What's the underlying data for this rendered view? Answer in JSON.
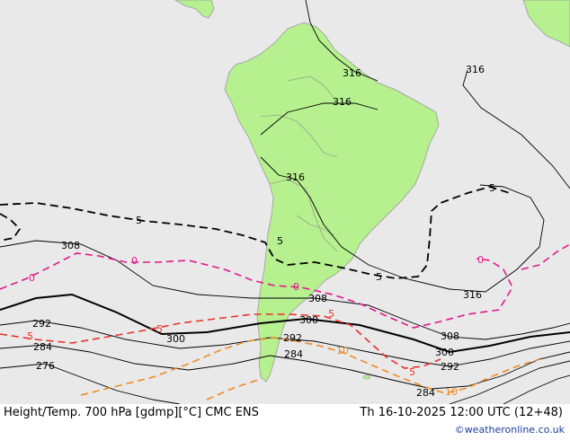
{
  "footer": {
    "left": "Height/Temp. 700 hPa [gdmp][°C] CMC ENS",
    "right": "Th 16-10-2025 12:00 UTC (12+48)",
    "credit": "©weatheronline.co.uk"
  },
  "colors": {
    "ocean": "#e9e9e9",
    "land": "#b6f08f",
    "height_contour": "#000000",
    "temp_zero": "#e0198a",
    "temp_minus5": "#e8322a",
    "temp_minus10": "#ee8a22"
  },
  "height_labels": [
    "316",
    "316",
    "316",
    "316",
    "316",
    "308",
    "308",
    "308",
    "300",
    "300",
    "300",
    "292",
    "292",
    "292",
    "284",
    "284",
    "284",
    "276"
  ],
  "temp_labels": {
    "black_5": [
      "5",
      "5",
      "5",
      "5"
    ],
    "magenta_0": [
      "0",
      "0",
      "0",
      "0"
    ],
    "red_minus5": [
      "5",
      "5",
      "5",
      "5"
    ],
    "orange_minus10": [
      "10",
      "10"
    ]
  }
}
